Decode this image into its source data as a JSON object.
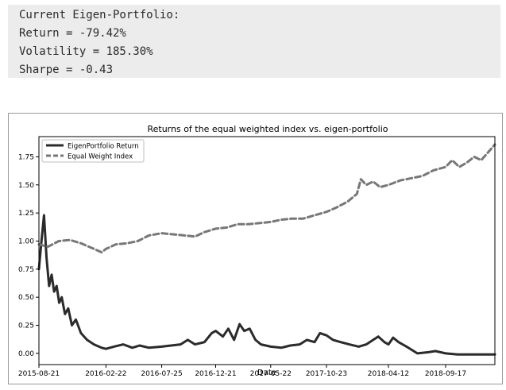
{
  "output": {
    "heading": "Current Eigen-Portfolio:",
    "return_line": "Return = -79.42%",
    "volatility_line": "Volatility = 185.30%",
    "sharpe_line": "Sharpe = -0.43"
  },
  "colors": {
    "eigen": "#2b2b2b",
    "equal": "#777777",
    "output_bg": "#ececec"
  },
  "chart_data": {
    "type": "line",
    "title": "Returns of the equal weighted index vs. eigen-portfolio",
    "xlabel": "Date",
    "ylabel": "",
    "x_ticks": [
      "2015-08-21",
      "2016-02-22",
      "2016-07-25",
      "2016-12-21",
      "2017-05-22",
      "2017-10-23",
      "2018-04-12",
      "2018-09-17"
    ],
    "y_ticks": [
      "0.00",
      "0.25",
      "0.50",
      "0.75",
      "1.00",
      "1.25",
      "1.50",
      "1.75"
    ],
    "xlim": [
      "2015-08-21",
      "2019-01-31"
    ],
    "ylim": [
      -0.1,
      1.93
    ],
    "legend_position": "top-left",
    "series": [
      {
        "name": "EigenPortfolio Return",
        "style": "solid",
        "points": [
          [
            "2015-08-21",
            0.75
          ],
          [
            "2015-08-28",
            1.0
          ],
          [
            "2015-09-04",
            1.23
          ],
          [
            "2015-09-11",
            0.85
          ],
          [
            "2015-09-18",
            0.6
          ],
          [
            "2015-09-25",
            0.7
          ],
          [
            "2015-10-02",
            0.55
          ],
          [
            "2015-10-09",
            0.6
          ],
          [
            "2015-10-16",
            0.45
          ],
          [
            "2015-10-23",
            0.5
          ],
          [
            "2015-11-01",
            0.35
          ],
          [
            "2015-11-10",
            0.4
          ],
          [
            "2015-11-20",
            0.25
          ],
          [
            "2015-12-01",
            0.3
          ],
          [
            "2015-12-15",
            0.18
          ],
          [
            "2016-01-01",
            0.12
          ],
          [
            "2016-01-20",
            0.08
          ],
          [
            "2016-02-10",
            0.05
          ],
          [
            "2016-02-22",
            0.04
          ],
          [
            "2016-03-15",
            0.06
          ],
          [
            "2016-04-10",
            0.08
          ],
          [
            "2016-05-05",
            0.05
          ],
          [
            "2016-05-25",
            0.07
          ],
          [
            "2016-06-20",
            0.05
          ],
          [
            "2016-07-25",
            0.06
          ],
          [
            "2016-08-20",
            0.07
          ],
          [
            "2016-09-15",
            0.08
          ],
          [
            "2016-10-05",
            0.12
          ],
          [
            "2016-10-25",
            0.08
          ],
          [
            "2016-11-20",
            0.1
          ],
          [
            "2016-12-10",
            0.18
          ],
          [
            "2016-12-21",
            0.2
          ],
          [
            "2017-01-10",
            0.15
          ],
          [
            "2017-01-25",
            0.22
          ],
          [
            "2017-02-10",
            0.12
          ],
          [
            "2017-02-25",
            0.26
          ],
          [
            "2017-03-10",
            0.2
          ],
          [
            "2017-03-25",
            0.22
          ],
          [
            "2017-04-10",
            0.12
          ],
          [
            "2017-04-25",
            0.08
          ],
          [
            "2017-05-22",
            0.06
          ],
          [
            "2017-06-20",
            0.05
          ],
          [
            "2017-07-15",
            0.07
          ],
          [
            "2017-08-10",
            0.08
          ],
          [
            "2017-08-30",
            0.12
          ],
          [
            "2017-09-20",
            0.1
          ],
          [
            "2017-10-05",
            0.18
          ],
          [
            "2017-10-23",
            0.16
          ],
          [
            "2017-11-10",
            0.12
          ],
          [
            "2017-12-01",
            0.1
          ],
          [
            "2017-12-25",
            0.08
          ],
          [
            "2018-01-20",
            0.06
          ],
          [
            "2018-02-10",
            0.08
          ],
          [
            "2018-03-01",
            0.12
          ],
          [
            "2018-03-15",
            0.15
          ],
          [
            "2018-04-01",
            0.1
          ],
          [
            "2018-04-12",
            0.08
          ],
          [
            "2018-04-25",
            0.14
          ],
          [
            "2018-05-10",
            0.1
          ],
          [
            "2018-06-01",
            0.06
          ],
          [
            "2018-07-01",
            0.0
          ],
          [
            "2018-08-01",
            0.01
          ],
          [
            "2018-08-20",
            0.02
          ],
          [
            "2018-09-17",
            0.0
          ],
          [
            "2018-10-20",
            -0.01
          ],
          [
            "2018-11-20",
            -0.01
          ],
          [
            "2018-12-20",
            -0.01
          ],
          [
            "2019-01-31",
            -0.01
          ]
        ]
      },
      {
        "name": "Equal Weight Index",
        "style": "dashed",
        "points": [
          [
            "2015-08-21",
            0.97
          ],
          [
            "2015-09-15",
            0.95
          ],
          [
            "2015-10-15",
            1.0
          ],
          [
            "2015-11-15",
            1.01
          ],
          [
            "2015-12-15",
            0.98
          ],
          [
            "2016-01-20",
            0.93
          ],
          [
            "2016-02-10",
            0.9
          ],
          [
            "2016-02-22",
            0.93
          ],
          [
            "2016-03-20",
            0.97
          ],
          [
            "2016-04-20",
            0.98
          ],
          [
            "2016-05-20",
            1.0
          ],
          [
            "2016-06-20",
            1.05
          ],
          [
            "2016-07-25",
            1.07
          ],
          [
            "2016-08-25",
            1.06
          ],
          [
            "2016-09-25",
            1.05
          ],
          [
            "2016-10-25",
            1.04
          ],
          [
            "2016-11-20",
            1.08
          ],
          [
            "2016-12-21",
            1.11
          ],
          [
            "2017-01-20",
            1.12
          ],
          [
            "2017-02-20",
            1.15
          ],
          [
            "2017-03-20",
            1.15
          ],
          [
            "2017-04-20",
            1.16
          ],
          [
            "2017-05-22",
            1.17
          ],
          [
            "2017-06-20",
            1.19
          ],
          [
            "2017-07-20",
            1.2
          ],
          [
            "2017-08-20",
            1.2
          ],
          [
            "2017-09-20",
            1.23
          ],
          [
            "2017-10-23",
            1.26
          ],
          [
            "2017-11-20",
            1.3
          ],
          [
            "2017-12-20",
            1.35
          ],
          [
            "2018-01-15",
            1.42
          ],
          [
            "2018-01-26",
            1.55
          ],
          [
            "2018-02-10",
            1.5
          ],
          [
            "2018-03-01",
            1.53
          ],
          [
            "2018-03-20",
            1.48
          ],
          [
            "2018-04-12",
            1.5
          ],
          [
            "2018-05-15",
            1.54
          ],
          [
            "2018-06-15",
            1.56
          ],
          [
            "2018-07-15",
            1.58
          ],
          [
            "2018-08-15",
            1.63
          ],
          [
            "2018-09-17",
            1.66
          ],
          [
            "2018-10-05",
            1.72
          ],
          [
            "2018-10-25",
            1.66
          ],
          [
            "2018-11-15",
            1.7
          ],
          [
            "2018-12-05",
            1.75
          ],
          [
            "2018-12-24",
            1.72
          ],
          [
            "2019-01-15",
            1.8
          ],
          [
            "2019-01-31",
            1.86
          ]
        ]
      }
    ]
  }
}
